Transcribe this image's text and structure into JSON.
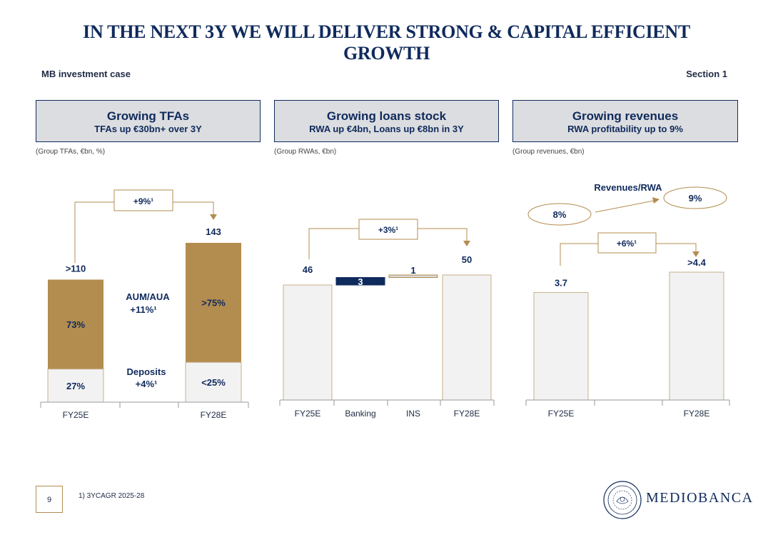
{
  "header": {
    "title_line1": "IN THE NEXT 3Y WE WILL DELIVER STRONG & CAPITAL EFFICIENT",
    "title_line2": "GROWTH",
    "left_label": "MB investment case",
    "right_label": "Section 1"
  },
  "panels": [
    {
      "title": "Growing TFAs",
      "subtitle": "TFAs up €30bn+ over 3Y",
      "unit": "(Group TFAs, €bn, %)"
    },
    {
      "title": "Growing loans stock",
      "subtitle": "RWA up €4bn, Loans up €8bn in 3Y",
      "unit": "(Group RWAs, €bn)"
    },
    {
      "title": "Growing revenues",
      "subtitle": "RWA profitability up to 9%",
      "unit": "(Group revenues, €bn)"
    }
  ],
  "footer": {
    "page_number": "9",
    "footnote": "1) 3YCAGR 2025-28",
    "brand": "MEDIOBANCA"
  },
  "colors": {
    "navy": "#0f2a5c",
    "gold": "#b38c4f",
    "light_fill": "#f2f2f2",
    "grey_fill": "#d9d9d9"
  },
  "chart_data": [
    {
      "type": "bar",
      "title": "Growing TFAs",
      "categories": [
        "FY25E",
        "FY28E"
      ],
      "totals": [
        110,
        143
      ],
      "total_labels": [
        ">110",
        "143"
      ],
      "series": [
        {
          "name": "Deposits",
          "values": [
            27,
            25
          ],
          "labels": [
            "27%",
            "<25%"
          ]
        },
        {
          "name": "AUM/AUA",
          "values": [
            73,
            75
          ],
          "labels": [
            "73%",
            ">75%"
          ]
        }
      ],
      "annotations": {
        "cagr": "+9%¹",
        "aum_label": "AUM/AUA",
        "aum_growth": "+11%¹",
        "deposits_label": "Deposits",
        "deposits_growth": "+4%¹"
      }
    },
    {
      "type": "bar",
      "subtype": "waterfall",
      "title": "Growing loans stock",
      "categories": [
        "FY25E",
        "Banking",
        "INS",
        "FY28E"
      ],
      "values": [
        46,
        3,
        1,
        50
      ],
      "labels": [
        "46",
        "3",
        "1",
        "50"
      ],
      "annotations": {
        "cagr": "+3%¹"
      }
    },
    {
      "type": "bar",
      "title": "Growing revenues",
      "categories": [
        "FY25E",
        "FY28E"
      ],
      "values": [
        3.7,
        4.4
      ],
      "labels": [
        "3.7",
        ">4.4"
      ],
      "annotations": {
        "cagr": "+6%¹",
        "ratio_title": "Revenues/RWA",
        "ratio_from": "8%",
        "ratio_to": "9%"
      }
    }
  ]
}
